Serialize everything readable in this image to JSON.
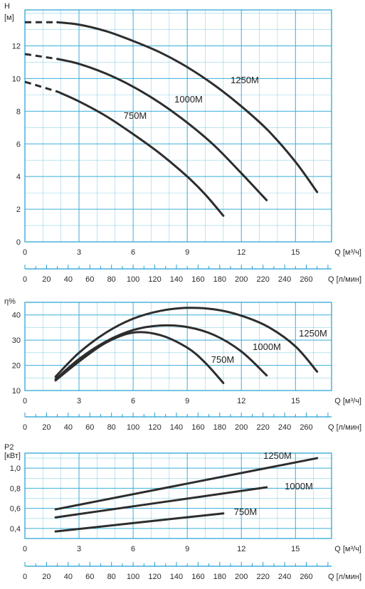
{
  "chart_data": [
    {
      "type": "line",
      "ylabel": "H",
      "yunit": "[м]",
      "xlabel": "Q [м³/ч]",
      "x2label": "Q [л/мин]",
      "xlim": [
        0,
        17
      ],
      "ylim": [
        0,
        14.2
      ],
      "x_ticks": [
        0,
        3,
        6,
        9,
        12,
        15
      ],
      "y_ticks": [
        0,
        2,
        4,
        6,
        8,
        10,
        12
      ],
      "x2_ticks": [
        0,
        20,
        40,
        60,
        80,
        100,
        120,
        140,
        160,
        180,
        200,
        220,
        240,
        260
      ],
      "series": [
        {
          "name": "1250M",
          "x": [
            1.8,
            3,
            4.5,
            6,
            7.5,
            9,
            10.5,
            12,
            13.5,
            15,
            16.2
          ],
          "y": [
            13.45,
            13.3,
            12.9,
            12.3,
            11.6,
            10.7,
            9.6,
            8.3,
            6.8,
            4.9,
            3.05
          ],
          "dashed_x": [
            0,
            1.8
          ],
          "dashed_y": [
            13.45,
            13.45
          ]
        },
        {
          "name": "1000M",
          "x": [
            1.8,
            3,
            4.5,
            6,
            7.5,
            9,
            10.5,
            12,
            13.4
          ],
          "y": [
            11.2,
            10.9,
            10.3,
            9.5,
            8.5,
            7.3,
            5.9,
            4.2,
            2.55
          ],
          "dashed_x": [
            0,
            1.8
          ],
          "dashed_y": [
            11.5,
            11.2
          ]
        },
        {
          "name": "750M",
          "x": [
            1.8,
            3,
            4.5,
            6,
            7.5,
            9,
            10,
            11
          ],
          "y": [
            9.2,
            8.6,
            7.7,
            6.6,
            5.4,
            4.0,
            2.9,
            1.6
          ],
          "dashed_x": [
            0,
            1.8
          ],
          "dashed_y": [
            9.8,
            9.2
          ]
        }
      ]
    },
    {
      "type": "line",
      "ylabel": "η%",
      "xlabel": "Q [м³/ч]",
      "x2label": "Q [л/мин]",
      "xlim": [
        0,
        17
      ],
      "ylim": [
        10,
        45
      ],
      "x_ticks": [
        0,
        3,
        6,
        9,
        12,
        15
      ],
      "y_ticks": [
        10,
        20,
        30,
        40
      ],
      "x2_ticks": [
        0,
        20,
        40,
        60,
        80,
        100,
        120,
        140,
        160,
        180,
        200,
        220,
        240,
        260
      ],
      "series": [
        {
          "name": "1250M",
          "x": [
            1.7,
            3,
            4.5,
            6,
            7.5,
            9,
            10.5,
            12,
            13.5,
            15,
            16.2
          ],
          "y": [
            15.5,
            25,
            33,
            38.5,
            41.6,
            42.8,
            42.2,
            39.7,
            35.2,
            27.5,
            17.5
          ]
        },
        {
          "name": "1000M",
          "x": [
            1.7,
            3,
            4.5,
            6,
            7.5,
            9,
            10.5,
            12,
            13.4
          ],
          "y": [
            14.5,
            22.5,
            29.5,
            34,
            35.8,
            35.2,
            32,
            25.5,
            16
          ]
        },
        {
          "name": "750M",
          "x": [
            1.7,
            3,
            4.5,
            6,
            7.5,
            9,
            10,
            11
          ],
          "y": [
            14,
            21.5,
            29,
            33,
            32,
            27,
            21,
            13
          ]
        }
      ]
    },
    {
      "type": "line",
      "ylabel": "P2",
      "yunit": "[кВт]",
      "xlabel": "Q [м³/ч]",
      "x2label": "Q [л/мин]",
      "xlim": [
        0,
        17
      ],
      "ylim": [
        0.3,
        1.15
      ],
      "x_ticks": [
        0,
        3,
        6,
        9,
        12,
        15
      ],
      "y_ticks": [
        "0,4",
        "0,6",
        "0,8",
        "1,0"
      ],
      "x2_ticks": [
        0,
        20,
        40,
        60,
        80,
        100,
        120,
        140,
        160,
        180,
        200,
        220,
        240,
        260
      ],
      "series": [
        {
          "name": "1250M",
          "x": [
            1.7,
            16.2
          ],
          "y": [
            0.59,
            1.1
          ]
        },
        {
          "name": "1000M",
          "x": [
            1.7,
            13.4
          ],
          "y": [
            0.51,
            0.81
          ]
        },
        {
          "name": "750M",
          "x": [
            1.7,
            11
          ],
          "y": [
            0.37,
            0.55
          ]
        }
      ]
    }
  ]
}
